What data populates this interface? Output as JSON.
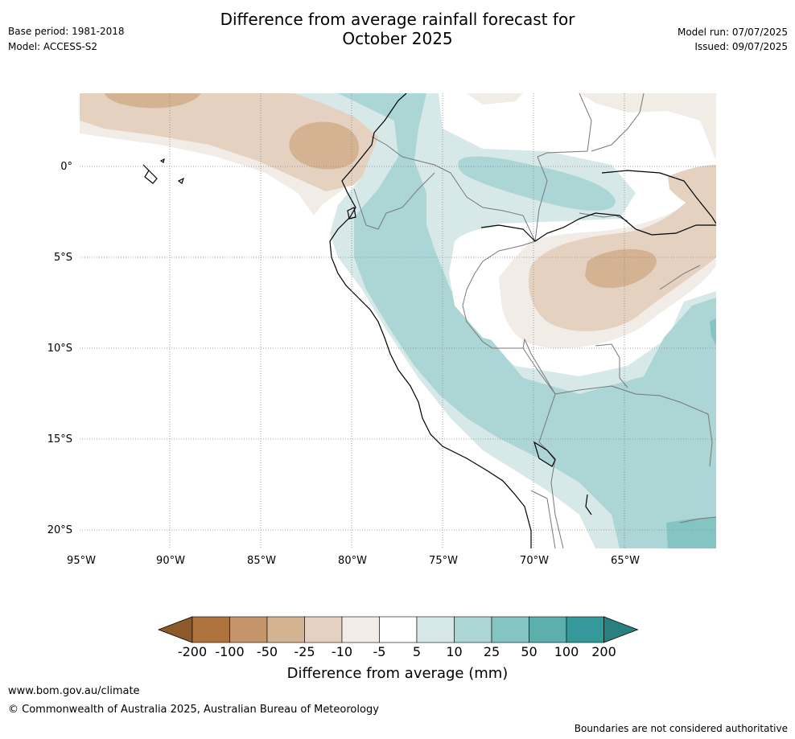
{
  "header": {
    "title": "Difference from average rainfall forecast for",
    "title_line2": "October 2025",
    "base_period": "Base period: 1981-2018",
    "model": "Model: ACCESS-S2",
    "model_run": "Model run: 07/07/2025",
    "issued": "Issued: 09/07/2025"
  },
  "map": {
    "lon_labels": [
      "95°W",
      "90°W",
      "85°W",
      "80°W",
      "75°W",
      "70°W",
      "65°W"
    ],
    "lat_labels": [
      "0°",
      "5°S",
      "10°S",
      "15°S",
      "20°S"
    ]
  },
  "colorbar": {
    "tick_labels": [
      "-200",
      "-100",
      "-50",
      "-25",
      "-10",
      "-5",
      "5",
      "10",
      "25",
      "50",
      "100",
      "200"
    ],
    "colors": [
      "#8c5a2a",
      "#ae733c",
      "#c4946a",
      "#d4b393",
      "#e4d1bf",
      "#f1ece6",
      "#ffffff",
      "#d6e9e8",
      "#acd6d6",
      "#84c4c2",
      "#5cafac",
      "#34999a",
      "#2a7f7f"
    ],
    "title": "Difference from average (mm)"
  },
  "footer": {
    "website": "www.bom.gov.au/climate",
    "copyright": "© Commonwealth of Australia 2025, Australian Bureau of Meteorology",
    "disclaimer": "Boundaries are not considered authoritative"
  }
}
